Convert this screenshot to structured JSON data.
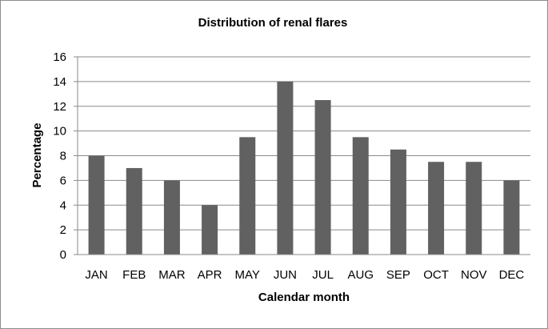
{
  "chart_data": {
    "type": "bar",
    "title": "Distribution of renal flares",
    "xlabel": "Calendar month",
    "ylabel": "Percentage",
    "categories": [
      "JAN",
      "FEB",
      "MAR",
      "APR",
      "MAY",
      "JUN",
      "JUL",
      "AUG",
      "SEP",
      "OCT",
      "NOV",
      "DEC"
    ],
    "values": [
      8,
      7,
      6,
      4,
      9.5,
      14,
      12.5,
      9.5,
      8.5,
      7.5,
      7.5,
      6
    ],
    "ylim": [
      0,
      16
    ],
    "yticks": [
      "0",
      "2",
      "4",
      "6",
      "8",
      "10",
      "12",
      "14",
      "16"
    ],
    "grid": true,
    "legend": "none",
    "colors": {
      "bar": "#616161",
      "grid": "#8a8a8a",
      "axis": "#8a8a8a"
    }
  }
}
